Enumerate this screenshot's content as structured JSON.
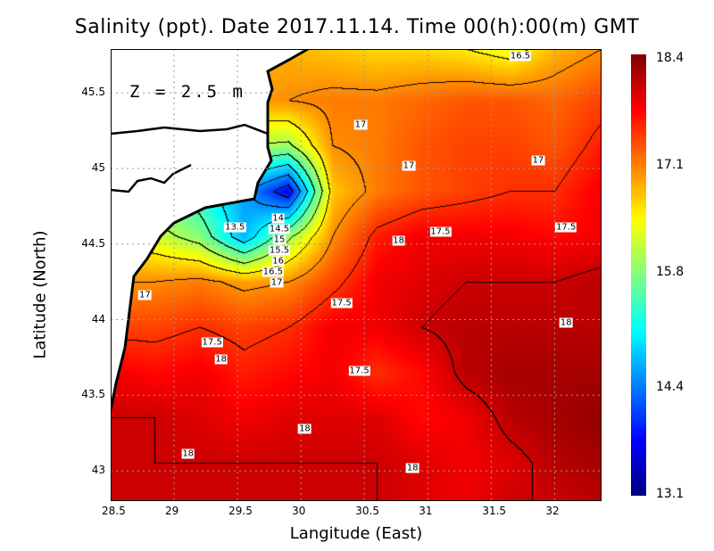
{
  "chart_data": {
    "type": "heatmap",
    "title": "Salinity (ppt). Date 2017.11.14. Time 00(h):00(m) GMT",
    "xlabel": "Langitude (East)",
    "ylabel": "Latitude (North)",
    "annotation": "Z = 2.5 m",
    "xlim": [
      28.5,
      32.37
    ],
    "ylim": [
      42.8,
      45.79
    ],
    "xticks": [
      "28.5",
      "29",
      "29.5",
      "30",
      "30.5",
      "31",
      "31.5",
      "32"
    ],
    "xtick_values": [
      28.5,
      29,
      29.5,
      30,
      30.5,
      31,
      31.5,
      32
    ],
    "yticks": [
      "45.5",
      "45",
      "44.5",
      "44",
      "43.5",
      "43"
    ],
    "ytick_values": [
      45.5,
      45,
      44.5,
      44,
      43.5,
      43
    ],
    "grid": true,
    "colorbar": {
      "min": 13.1,
      "max": 18.4,
      "labels": [
        "18.4",
        "17.1",
        "15.8",
        "14.4",
        "13.1"
      ],
      "label_values": [
        18.4,
        17.1,
        15.8,
        14.4,
        13.1
      ],
      "colormap": "jet"
    },
    "contour_interval": 0.5,
    "grid_lons": [
      28.5,
      28.85,
      29.2,
      29.55,
      29.9,
      30.25,
      30.6,
      30.95,
      31.3,
      31.65,
      32.0,
      32.37
    ],
    "grid_lats": [
      45.79,
      45.45,
      45.15,
      44.85,
      44.55,
      44.25,
      43.95,
      43.65,
      43.35,
      43.05,
      42.8
    ],
    "values": [
      [
        16.8,
        16.8,
        16.8,
        16.8,
        16.8,
        16.7,
        16.6,
        16.6,
        16.5,
        16.3,
        16.8,
        17.0
      ],
      [
        16.9,
        16.9,
        16.9,
        16.9,
        17.0,
        17.1,
        17.1,
        17.2,
        17.3,
        17.3,
        17.2,
        17.4
      ],
      [
        16.0,
        16.0,
        16.0,
        16.0,
        15.9,
        17.0,
        17.1,
        17.3,
        17.4,
        17.4,
        17.3,
        17.6
      ],
      [
        15.5,
        15.5,
        15.2,
        14.6,
        13.7,
        16.7,
        17.1,
        17.3,
        17.4,
        17.5,
        17.5,
        17.8
      ],
      [
        16.4,
        16.2,
        15.8,
        14.7,
        15.9,
        17.0,
        17.6,
        17.8,
        17.8,
        17.8,
        17.7,
        17.8
      ],
      [
        17.0,
        17.0,
        17.1,
        16.9,
        17.0,
        17.4,
        17.8,
        17.9,
        18.0,
        18.0,
        18.0,
        18.1
      ],
      [
        17.4,
        17.4,
        17.5,
        17.4,
        17.5,
        17.8,
        17.8,
        18.0,
        18.1,
        18.1,
        18.1,
        18.1
      ],
      [
        17.8,
        17.7,
        17.8,
        17.6,
        17.7,
        17.8,
        17.5,
        17.7,
        18.1,
        18.2,
        18.2,
        18.2
      ],
      [
        18.0,
        18.0,
        17.9,
        17.8,
        17.9,
        17.9,
        17.9,
        17.7,
        17.8,
        18.1,
        18.2,
        18.3
      ],
      [
        18.0,
        18.0,
        18.0,
        18.0,
        18.0,
        18.0,
        18.0,
        17.9,
        17.8,
        17.9,
        18.1,
        18.2
      ],
      [
        18.0,
        18.0,
        18.0,
        18.0,
        18.0,
        18.0,
        18.0,
        17.9,
        17.8,
        18.0,
        18.0,
        18.1
      ]
    ],
    "contour_labels": [
      {
        "text": "16.5",
        "lon": 31.73,
        "lat": 45.74
      },
      {
        "text": "17",
        "lon": 30.47,
        "lat": 45.29
      },
      {
        "text": "17",
        "lon": 30.85,
        "lat": 45.02
      },
      {
        "text": "17",
        "lon": 31.87,
        "lat": 45.05
      },
      {
        "text": "17.5",
        "lon": 31.1,
        "lat": 44.58
      },
      {
        "text": "17.5",
        "lon": 32.09,
        "lat": 44.61
      },
      {
        "text": "18",
        "lon": 30.77,
        "lat": 44.52
      },
      {
        "text": "13.5",
        "lon": 29.48,
        "lat": 44.61
      },
      {
        "text": "14",
        "lon": 29.82,
        "lat": 44.67
      },
      {
        "text": "14.5",
        "lon": 29.83,
        "lat": 44.63
      },
      {
        "text": "15",
        "lon": 29.83,
        "lat": 44.6
      },
      {
        "text": "15.5",
        "lon": 29.83,
        "lat": 44.565
      },
      {
        "text": "16",
        "lon": 29.82,
        "lat": 44.52
      },
      {
        "text": "16.5",
        "lon": 29.78,
        "lat": 44.43
      },
      {
        "text": "17",
        "lon": 29.81,
        "lat": 44.27
      },
      {
        "text": "17",
        "lon": 28.77,
        "lat": 44.16
      },
      {
        "text": "17.5",
        "lon": 30.32,
        "lat": 44.11
      },
      {
        "text": "18",
        "lon": 32.09,
        "lat": 43.98
      },
      {
        "text": "17.5",
        "lon": 29.3,
        "lat": 43.85
      },
      {
        "text": "18",
        "lon": 29.37,
        "lat": 43.74
      },
      {
        "text": "17.5",
        "lon": 30.46,
        "lat": 43.66
      },
      {
        "text": "18",
        "lon": 30.03,
        "lat": 43.28
      },
      {
        "text": "18",
        "lon": 29.11,
        "lat": 43.11
      },
      {
        "text": "18",
        "lon": 30.88,
        "lat": 43.02
      }
    ]
  }
}
